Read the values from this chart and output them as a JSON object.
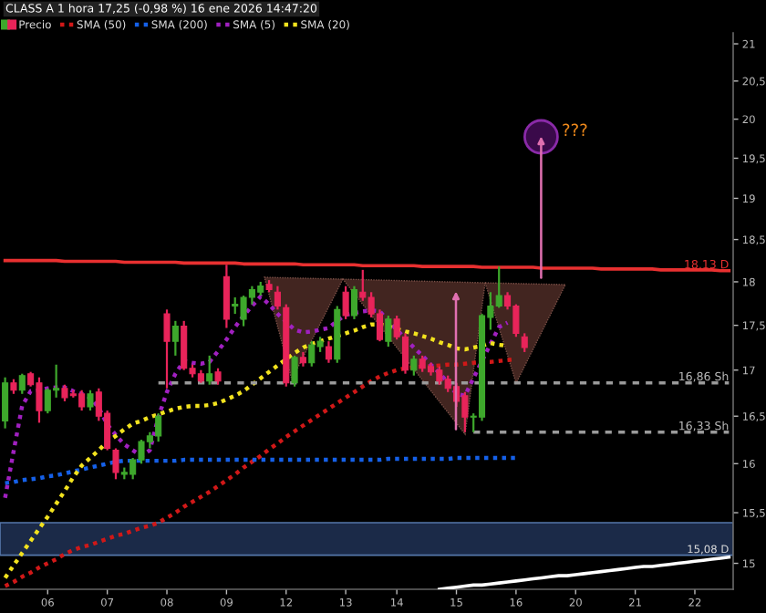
{
  "chart_data": {
    "type": "candlestick",
    "title": "CLASS A 1 hora 17,25 (-0,98 %) 16 ene 2026 14:47:20",
    "log": true,
    "legend": "top left",
    "categories": [
      null,
      null,
      null,
      null,
      null,
      "06",
      null,
      null,
      null,
      null,
      null,
      null,
      "07",
      null,
      null,
      null,
      null,
      null,
      null,
      "08",
      null,
      null,
      null,
      null,
      null,
      null,
      "09",
      null,
      null,
      null,
      null,
      null,
      null,
      "12",
      null,
      null,
      null,
      null,
      null,
      null,
      "13",
      null,
      null,
      null,
      null,
      null,
      "14",
      null,
      null,
      null,
      null,
      null,
      null,
      "15",
      null,
      null,
      null,
      null,
      null,
      null,
      "16",
      null,
      null,
      null,
      null,
      null,
      null,
      "20",
      null,
      null,
      null,
      null,
      null,
      null,
      "21",
      null,
      null,
      null,
      null,
      null,
      null,
      "22",
      null,
      null,
      null,
      null
    ],
    "ylim": [
      14.75,
      21.15
    ],
    "yticks": [
      15,
      {
        "value": 15.5,
        "label": "15,5"
      },
      16,
      {
        "value": 16.5,
        "label": "16,5"
      },
      17,
      {
        "value": 17.5,
        "label": "17,5"
      },
      18,
      {
        "value": 18.5,
        "label": "18,5"
      },
      19,
      {
        "value": 19.5,
        "label": "19,5"
      },
      20,
      {
        "value": 20.5,
        "label": "20,5"
      },
      21
    ],
    "series": [
      {
        "name": "Precio",
        "ohlc": [
          [
            16.45,
            16.92,
            16.37,
            16.86
          ],
          [
            16.86,
            16.9,
            16.74,
            16.78
          ],
          [
            16.78,
            16.96,
            16.74,
            16.94
          ],
          [
            16.96,
            16.98,
            16.82,
            16.84
          ],
          [
            16.86,
            16.92,
            16.43,
            16.56
          ],
          [
            16.56,
            16.8,
            16.53,
            16.78
          ],
          [
            16.78,
            17.06,
            16.7,
            16.8
          ],
          [
            16.8,
            16.84,
            16.66,
            16.7
          ],
          [
            16.74,
            16.78,
            16.7,
            16.72
          ],
          [
            16.74,
            16.78,
            16.56,
            16.6
          ],
          [
            16.6,
            16.78,
            16.56,
            16.74
          ],
          [
            16.76,
            16.8,
            16.45,
            16.5
          ],
          [
            16.53,
            16.56,
            16.14,
            16.16
          ],
          [
            16.14,
            16.16,
            15.84,
            15.91
          ],
          [
            15.89,
            15.96,
            15.84,
            15.91
          ],
          [
            15.89,
            16.06,
            15.84,
            16.04
          ],
          [
            16.04,
            16.25,
            16.0,
            16.23
          ],
          [
            16.23,
            16.33,
            16.16,
            16.29
          ],
          [
            16.29,
            16.53,
            16.23,
            16.5
          ],
          [
            17.63,
            17.68,
            16.8,
            17.32
          ],
          [
            17.32,
            17.55,
            17.16,
            17.49
          ],
          [
            17.49,
            17.55,
            17.0,
            17.02
          ],
          [
            17.02,
            17.06,
            16.92,
            16.96
          ],
          [
            16.96,
            17.0,
            16.86,
            16.88
          ],
          [
            16.88,
            17.16,
            16.84,
            16.96
          ],
          [
            16.98,
            17.02,
            16.84,
            16.88
          ],
          [
            18.06,
            18.2,
            17.47,
            17.57
          ],
          [
            17.72,
            17.82,
            17.63,
            17.74
          ],
          [
            17.57,
            17.84,
            17.49,
            17.82
          ],
          [
            17.82,
            17.95,
            17.74,
            17.91
          ],
          [
            17.88,
            18.0,
            17.84,
            17.95
          ],
          [
            17.97,
            18.02,
            17.88,
            17.91
          ],
          [
            17.88,
            17.95,
            17.68,
            17.72
          ],
          [
            17.7,
            17.74,
            16.82,
            16.86
          ],
          [
            16.86,
            17.16,
            16.82,
            17.14
          ],
          [
            17.14,
            17.2,
            17.04,
            17.08
          ],
          [
            17.08,
            17.32,
            17.04,
            17.28
          ],
          [
            17.26,
            17.37,
            17.2,
            17.32
          ],
          [
            17.26,
            17.32,
            17.08,
            17.12
          ],
          [
            17.12,
            17.72,
            17.08,
            17.68
          ],
          [
            17.88,
            17.95,
            17.57,
            17.61
          ],
          [
            17.61,
            17.95,
            17.57,
            17.91
          ],
          [
            17.88,
            18.14,
            17.78,
            17.82
          ],
          [
            17.82,
            17.88,
            17.59,
            17.63
          ],
          [
            17.63,
            17.68,
            17.32,
            17.34
          ],
          [
            17.32,
            17.61,
            17.26,
            17.57
          ],
          [
            17.57,
            17.61,
            17.34,
            17.37
          ],
          [
            17.37,
            17.41,
            16.96,
            17.0
          ],
          [
            17.0,
            17.16,
            16.94,
            17.12
          ],
          [
            17.12,
            17.16,
            16.98,
            17.02
          ],
          [
            17.04,
            17.08,
            16.94,
            16.98
          ],
          [
            17.0,
            17.04,
            16.84,
            16.88
          ],
          [
            16.9,
            16.94,
            16.76,
            16.8
          ],
          [
            16.82,
            16.86,
            16.6,
            16.66
          ],
          [
            16.72,
            16.76,
            16.33,
            16.49
          ],
          [
            16.49,
            16.53,
            16.33,
            16.5
          ],
          [
            16.49,
            17.63,
            16.45,
            17.61
          ],
          [
            17.59,
            17.88,
            17.45,
            17.72
          ],
          [
            17.72,
            18.18,
            17.7,
            17.84
          ],
          [
            17.84,
            17.88,
            17.68,
            17.72
          ],
          [
            17.72,
            17.74,
            17.37,
            17.41
          ],
          [
            17.37,
            17.41,
            17.2,
            17.25
          ],
          null,
          null,
          null,
          null,
          null,
          null,
          null,
          null,
          null,
          null,
          null,
          null,
          null,
          null,
          null,
          null,
          null,
          null,
          null,
          null,
          null,
          null,
          null,
          null
        ],
        "colors": [
          "#3ea82c",
          "#e8245a",
          "#3ea82c",
          "#e8245a",
          "#e8245a",
          "#3ea82c",
          "#3ea82c",
          "#e8245a",
          "#e8245a",
          "#e8245a",
          "#3ea82c",
          "#e8245a",
          "#e8245a",
          "#e8245a",
          "#3ea82c",
          "#3ea82c",
          "#3ea82c",
          "#3ea82c",
          "#3ea82c",
          "#e8245a",
          "#3ea82c",
          "#e8245a",
          "#e8245a",
          "#e8245a",
          "#3ea82c",
          "#e8245a",
          "#e8245a",
          "#3ea82c",
          "#3ea82c",
          "#3ea82c",
          "#3ea82c",
          "#e8245a",
          "#e8245a",
          "#e8245a",
          "#3ea82c",
          "#e8245a",
          "#3ea82c",
          "#3ea82c",
          "#e8245a",
          "#3ea82c",
          "#e8245a",
          "#3ea82c",
          "#e8245a",
          "#e8245a",
          "#e8245a",
          "#3ea82c",
          "#e8245a",
          "#e8245a",
          "#3ea82c",
          "#e8245a",
          "#e8245a",
          "#e8245a",
          "#e8245a",
          "#e8245a",
          "#e8245a",
          "#3ea82c",
          "#3ea82c",
          "#3ea82c",
          "#3ea82c",
          "#e8245a",
          "#e8245a",
          "#e8245a",
          null,
          null,
          null,
          null,
          null,
          null,
          null,
          null,
          null,
          null,
          null,
          null,
          null,
          null,
          null,
          null,
          null,
          null,
          null,
          null,
          null,
          null,
          null,
          null
        ]
      },
      {
        "type": "line",
        "name": "SMA (50)",
        "color": "#d01818",
        "line_style": "dotted",
        "values": [
          14.78,
          14.82,
          14.87,
          14.91,
          14.96,
          15.0,
          15.04,
          15.09,
          15.13,
          15.16,
          15.18,
          15.21,
          15.24,
          15.27,
          15.29,
          15.32,
          15.35,
          15.37,
          15.4,
          15.45,
          15.5,
          15.56,
          15.61,
          15.66,
          15.71,
          15.77,
          15.83,
          15.89,
          15.96,
          16.02,
          16.08,
          16.15,
          16.21,
          16.28,
          16.34,
          16.4,
          16.46,
          16.52,
          16.58,
          16.64,
          16.7,
          16.76,
          16.82,
          16.88,
          16.93,
          16.97,
          17.0,
          17.02,
          17.03,
          17.04,
          17.04,
          17.05,
          17.06,
          17.06,
          17.07,
          17.08,
          17.09,
          17.09,
          17.1,
          17.11,
          17.12,
          null,
          null,
          null,
          null,
          null,
          null,
          null,
          null,
          null,
          null,
          null,
          null,
          null,
          null,
          null,
          null,
          null,
          null,
          null,
          null,
          null,
          null,
          null,
          null,
          null
        ]
      },
      {
        "type": "line",
        "name": "SMA (200)",
        "color": "#1560e8",
        "line_style": "dotted",
        "values": [
          15.8,
          15.81,
          15.83,
          15.84,
          15.85,
          15.87,
          15.88,
          15.9,
          15.92,
          15.94,
          15.96,
          15.98,
          16.0,
          16.02,
          16.03,
          16.03,
          16.03,
          16.03,
          16.03,
          16.03,
          16.03,
          16.04,
          16.04,
          16.04,
          16.04,
          16.04,
          16.04,
          16.04,
          16.04,
          16.04,
          16.04,
          16.04,
          16.04,
          16.04,
          16.04,
          16.04,
          16.04,
          16.04,
          16.04,
          16.04,
          16.04,
          16.04,
          16.04,
          16.04,
          16.04,
          16.05,
          16.05,
          16.05,
          16.05,
          16.05,
          16.05,
          16.05,
          16.05,
          16.06,
          16.06,
          16.06,
          16.06,
          16.06,
          16.06,
          16.06,
          16.06,
          null,
          null,
          null,
          null,
          null,
          null,
          null,
          null,
          null,
          null,
          null,
          null,
          null,
          null,
          null,
          null,
          null,
          null,
          null,
          null,
          null,
          null,
          null,
          null,
          null
        ]
      },
      {
        "type": "line",
        "name": "SMA (5)",
        "color": "#a020c0",
        "line_style": "dotted",
        "values": [
          15.65,
          16.13,
          16.61,
          16.77,
          16.78,
          16.8,
          16.81,
          16.81,
          16.77,
          16.74,
          16.7,
          16.59,
          16.41,
          16.3,
          16.2,
          16.14,
          16.08,
          16.14,
          16.49,
          16.76,
          16.96,
          17.1,
          17.08,
          17.07,
          17.09,
          17.21,
          17.34,
          17.48,
          17.61,
          17.72,
          17.83,
          17.74,
          17.63,
          17.54,
          17.45,
          17.42,
          17.43,
          17.45,
          17.47,
          17.55,
          17.62,
          17.64,
          17.66,
          17.67,
          17.66,
          17.55,
          17.45,
          17.35,
          17.25,
          17.16,
          17.06,
          16.97,
          16.86,
          16.74,
          16.72,
          16.91,
          17.1,
          17.29,
          17.48,
          17.53,
          null,
          null,
          null,
          null,
          null,
          null,
          null,
          null,
          null,
          null,
          null,
          null,
          null,
          null,
          null,
          null,
          null,
          null,
          null,
          null,
          null,
          null,
          null,
          null,
          null,
          null
        ]
      },
      {
        "type": "line",
        "name": "SMA (20)",
        "color": "#f2e21e",
        "line_style": "dotted",
        "values": [
          14.86,
          14.98,
          15.1,
          15.22,
          15.34,
          15.46,
          15.59,
          15.72,
          15.86,
          15.98,
          16.06,
          16.14,
          16.23,
          16.29,
          16.36,
          16.42,
          16.45,
          16.49,
          16.52,
          16.55,
          16.58,
          16.6,
          16.61,
          16.61,
          16.62,
          16.64,
          16.68,
          16.72,
          16.77,
          16.84,
          16.91,
          16.98,
          17.05,
          17.12,
          17.19,
          17.25,
          17.29,
          17.32,
          17.35,
          17.38,
          17.41,
          17.44,
          17.48,
          17.51,
          17.51,
          17.49,
          17.46,
          17.43,
          17.41,
          17.38,
          17.35,
          17.31,
          17.28,
          17.24,
          17.23,
          17.25,
          17.27,
          17.3,
          17.28,
          17.27,
          null,
          null,
          null,
          null,
          null,
          null,
          null,
          null,
          null,
          null,
          null,
          null,
          null,
          null,
          null,
          null,
          null,
          null,
          null,
          null,
          null,
          null,
          null,
          null,
          null,
          null
        ]
      },
      {
        "type": "line",
        "color": "#e83030",
        "line_style": "solid",
        "values": [
          18.25,
          18.25,
          18.25,
          18.25,
          18.25,
          18.25,
          18.25,
          18.24,
          18.24,
          18.24,
          18.24,
          18.24,
          18.24,
          18.24,
          18.23,
          18.23,
          18.23,
          18.23,
          18.23,
          18.23,
          18.23,
          18.22,
          18.22,
          18.22,
          18.22,
          18.22,
          18.22,
          18.22,
          18.21,
          18.21,
          18.21,
          18.21,
          18.21,
          18.21,
          18.21,
          18.2,
          18.2,
          18.2,
          18.2,
          18.2,
          18.2,
          18.2,
          18.19,
          18.19,
          18.19,
          18.19,
          18.19,
          18.19,
          18.19,
          18.18,
          18.18,
          18.18,
          18.18,
          18.18,
          18.18,
          18.18,
          18.17,
          18.17,
          18.17,
          18.17,
          18.17,
          18.17,
          18.17,
          18.16,
          18.16,
          18.16,
          18.16,
          18.16,
          18.16,
          18.16,
          18.15,
          18.15,
          18.15,
          18.15,
          18.15,
          18.15,
          18.15,
          18.14,
          18.14,
          18.14,
          18.14,
          18.14,
          18.14,
          18.14,
          18.13,
          18.13
        ]
      },
      {
        "type": "line",
        "color": "#9a9a9a",
        "line_style": "dashed",
        "values": [
          null,
          null,
          null,
          null,
          null,
          null,
          null,
          null,
          null,
          null,
          null,
          null,
          null,
          null,
          null,
          null,
          null,
          null,
          16.86,
          16.86,
          16.86,
          16.86,
          16.86,
          16.86,
          16.86,
          16.86,
          16.86,
          16.86,
          16.86,
          16.86,
          16.86,
          16.86,
          16.86,
          16.86,
          16.86,
          16.86,
          16.86,
          16.86,
          16.86,
          16.86,
          16.86,
          16.86,
          16.86,
          16.86,
          16.86,
          16.86,
          16.86,
          16.86,
          16.86,
          16.86,
          16.86,
          16.86,
          16.86,
          16.86,
          16.86,
          16.86,
          16.86,
          16.86,
          16.86,
          16.86,
          16.86,
          16.86,
          16.86,
          16.86,
          16.86,
          16.86,
          16.86,
          16.86,
          16.86,
          16.86,
          16.86,
          16.86,
          16.86,
          16.86,
          16.86,
          16.86,
          16.86,
          16.86,
          16.86,
          16.86,
          16.86,
          16.86,
          16.86,
          16.86,
          16.86,
          16.86
        ]
      },
      {
        "type": "line",
        "color": "#9a9a9a",
        "line_style": "dashed",
        "values": [
          null,
          null,
          null,
          null,
          null,
          null,
          null,
          null,
          null,
          null,
          null,
          null,
          null,
          null,
          null,
          null,
          null,
          null,
          null,
          null,
          null,
          null,
          null,
          null,
          null,
          null,
          null,
          null,
          null,
          null,
          null,
          null,
          null,
          null,
          null,
          null,
          null,
          null,
          null,
          null,
          null,
          null,
          null,
          null,
          null,
          null,
          null,
          null,
          null,
          null,
          null,
          null,
          null,
          null,
          null,
          16.33,
          16.33,
          16.33,
          16.33,
          16.33,
          16.33,
          16.33,
          16.33,
          16.33,
          16.33,
          16.33,
          16.33,
          16.33,
          16.33,
          16.33,
          16.33,
          16.33,
          16.33,
          16.33,
          16.33,
          16.33,
          16.33,
          16.33,
          16.33,
          16.33,
          16.33,
          16.33,
          16.33,
          16.33,
          16.33,
          16.33
        ]
      },
      {
        "type": "line",
        "color": "#ffffff",
        "line_style": "solid",
        "values": [
          null,
          null,
          null,
          null,
          null,
          null,
          null,
          null,
          null,
          null,
          null,
          null,
          null,
          null,
          null,
          null,
          null,
          null,
          null,
          null,
          null,
          null,
          null,
          null,
          null,
          null,
          null,
          null,
          null,
          null,
          null,
          null,
          null,
          null,
          null,
          null,
          null,
          null,
          null,
          null,
          null,
          null,
          null,
          null,
          null,
          null,
          null,
          null,
          null,
          null,
          null,
          14.75,
          14.76,
          14.77,
          14.78,
          14.79,
          14.79,
          14.8,
          14.81,
          14.82,
          14.83,
          14.84,
          14.85,
          14.86,
          14.87,
          14.88,
          14.88,
          14.89,
          14.9,
          14.91,
          14.92,
          14.93,
          14.94,
          14.95,
          14.96,
          14.97,
          14.97,
          14.98,
          14.99,
          15.0,
          15.01,
          15.02,
          15.03,
          15.04,
          15.05,
          15.06
        ]
      }
    ],
    "bands": [
      {
        "axis": "y",
        "from": 15.08,
        "to": 15.4,
        "color": "#1b2a48",
        "label": "15,08 D"
      }
    ],
    "annotations": [
      {
        "text": "18,13 D",
        "y": 18.13
      },
      {
        "text": "16,86 Sh",
        "y": 16.86
      },
      {
        "text": "16,33 Sh",
        "y": 16.33
      },
      "???"
    ]
  }
}
